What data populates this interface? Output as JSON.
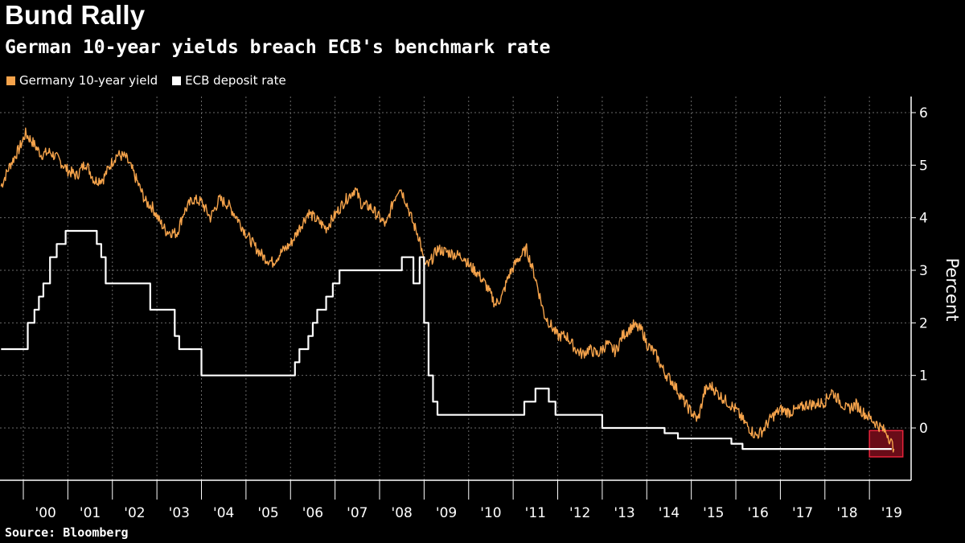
{
  "chart_data": {
    "type": "line",
    "title": "Bund Rally",
    "subtitle": "German 10-year yields breach ECB's benchmark rate",
    "ylabel": "Percent",
    "xlabel": "",
    "source": "Source: Bloomberg",
    "ylim": [
      -1,
      6.3
    ],
    "xlim": [
      1999.5,
      2019.9
    ],
    "yticks": [
      0,
      1,
      2,
      3,
      4,
      5,
      6
    ],
    "x_tick_labels": [
      "'00",
      "'01",
      "'02",
      "'03",
      "'04",
      "'05",
      "'06",
      "'07",
      "'08",
      "'09",
      "'10",
      "'11",
      "'12",
      "'13",
      "'14",
      "'15",
      "'16",
      "'17",
      "'18",
      "'19"
    ],
    "x_tick_years": [
      2000,
      2001,
      2002,
      2003,
      2004,
      2005,
      2006,
      2007,
      2008,
      2009,
      2010,
      2011,
      2012,
      2013,
      2014,
      2015,
      2016,
      2017,
      2018,
      2019
    ],
    "grid": true,
    "legend_position": "top-left",
    "highlight_box": {
      "x_range": [
        2019.0,
        2019.75
      ],
      "y_range": [
        -0.55,
        -0.05
      ],
      "color": "#c0162c"
    },
    "series": [
      {
        "name": "Germany 10-year yield",
        "color": "#f5a34b",
        "x": [
          1999.5,
          1999.7,
          1999.9,
          2000.05,
          2000.2,
          2000.4,
          2000.6,
          2000.8,
          2001.0,
          2001.2,
          2001.4,
          2001.6,
          2001.8,
          2001.95,
          2002.1,
          2002.3,
          2002.45,
          2002.6,
          2002.75,
          2002.9,
          2003.05,
          2003.2,
          2003.45,
          2003.6,
          2003.8,
          2004.0,
          2004.2,
          2004.4,
          2004.6,
          2004.8,
          2005.0,
          2005.2,
          2005.4,
          2005.6,
          2005.8,
          2006.0,
          2006.2,
          2006.4,
          2006.6,
          2006.8,
          2007.0,
          2007.2,
          2007.45,
          2007.6,
          2007.8,
          2008.0,
          2008.15,
          2008.3,
          2008.45,
          2008.6,
          2008.75,
          2008.9,
          2009.0,
          2009.1,
          2009.3,
          2009.5,
          2009.7,
          2009.9,
          2010.0,
          2010.2,
          2010.4,
          2010.6,
          2010.75,
          2010.9,
          2011.1,
          2011.3,
          2011.5,
          2011.7,
          2011.85,
          2012.0,
          2012.2,
          2012.4,
          2012.55,
          2012.7,
          2012.9,
          2013.1,
          2013.3,
          2013.45,
          2013.7,
          2013.9,
          2014.0,
          2014.2,
          2014.4,
          2014.6,
          2014.8,
          2015.0,
          2015.15,
          2015.3,
          2015.45,
          2015.6,
          2015.8,
          2016.0,
          2016.2,
          2016.45,
          2016.6,
          2016.8,
          2017.0,
          2017.2,
          2017.4,
          2017.6,
          2017.8,
          2018.0,
          2018.15,
          2018.3,
          2018.5,
          2018.7,
          2018.85,
          2019.0,
          2019.2,
          2019.4,
          2019.55
        ],
        "values": [
          4.6,
          5.0,
          5.3,
          5.6,
          5.45,
          5.2,
          5.25,
          5.1,
          4.9,
          4.8,
          5.05,
          4.7,
          4.75,
          5.0,
          5.2,
          5.15,
          4.9,
          4.6,
          4.3,
          4.2,
          3.95,
          3.75,
          3.7,
          4.1,
          4.35,
          4.3,
          4.0,
          4.35,
          4.25,
          4.0,
          3.7,
          3.45,
          3.25,
          3.15,
          3.35,
          3.5,
          3.8,
          4.1,
          3.95,
          3.8,
          4.05,
          4.3,
          4.55,
          4.25,
          4.2,
          4.0,
          3.85,
          4.3,
          4.6,
          4.3,
          3.9,
          3.6,
          3.1,
          3.1,
          3.4,
          3.35,
          3.3,
          3.25,
          3.1,
          2.95,
          2.7,
          2.35,
          2.5,
          2.9,
          3.2,
          3.4,
          2.85,
          2.15,
          1.95,
          1.75,
          1.75,
          1.5,
          1.4,
          1.5,
          1.4,
          1.6,
          1.45,
          1.75,
          1.95,
          1.85,
          1.6,
          1.4,
          1.05,
          0.85,
          0.55,
          0.3,
          0.15,
          0.7,
          0.8,
          0.65,
          0.5,
          0.35,
          0.1,
          -0.15,
          -0.05,
          0.2,
          0.35,
          0.3,
          0.35,
          0.45,
          0.45,
          0.5,
          0.7,
          0.55,
          0.35,
          0.45,
          0.3,
          0.2,
          0.05,
          -0.1,
          -0.4
        ]
      },
      {
        "name": "ECB deposit rate",
        "color": "#ffffff",
        "x": [
          1999.5,
          1999.85,
          2000.1,
          2000.25,
          2000.35,
          2000.45,
          2000.6,
          2000.75,
          2000.95,
          2001.35,
          2001.65,
          2001.75,
          2001.85,
          2002.5,
          2002.85,
          2003.1,
          2003.4,
          2003.5,
          2004.0,
          2005.0,
          2005.9,
          2006.1,
          2006.2,
          2006.4,
          2006.5,
          2006.6,
          2006.8,
          2006.95,
          2007.1,
          2007.2,
          2007.45,
          2008.5,
          2008.72,
          2008.76,
          2008.9,
          2009.0,
          2009.1,
          2009.2,
          2009.3,
          2010.0,
          2011.0,
          2011.25,
          2011.5,
          2011.8,
          2011.95,
          2012.5,
          2013.0,
          2013.5,
          2014.0,
          2014.4,
          2014.7,
          2015.0,
          2015.9,
          2016.15,
          2016.5,
          2017.0,
          2018.0,
          2019.0,
          2019.5
        ],
        "values": [
          1.5,
          1.5,
          2.0,
          2.25,
          2.5,
          2.75,
          3.25,
          3.5,
          3.75,
          3.75,
          3.5,
          3.25,
          2.75,
          2.75,
          2.25,
          2.25,
          1.75,
          1.5,
          1.0,
          1.0,
          1.0,
          1.25,
          1.5,
          1.75,
          2.0,
          2.25,
          2.5,
          2.75,
          3.0,
          3.0,
          3.0,
          3.25,
          3.25,
          2.75,
          3.25,
          2.0,
          1.0,
          0.5,
          0.25,
          0.25,
          0.25,
          0.5,
          0.75,
          0.5,
          0.25,
          0.25,
          0.0,
          0.0,
          0.0,
          -0.1,
          -0.2,
          -0.2,
          -0.3,
          -0.4,
          -0.4,
          -0.4,
          -0.4,
          -0.4,
          -0.4
        ]
      }
    ]
  }
}
